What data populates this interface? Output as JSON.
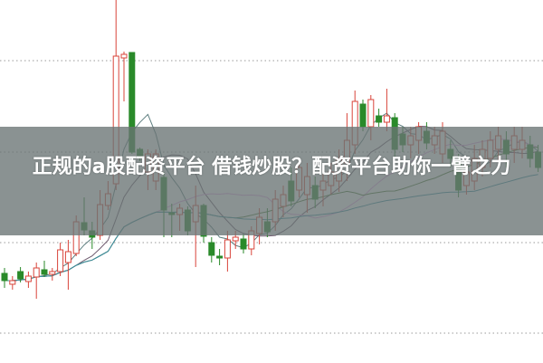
{
  "headline": "正规的a股配资平台 借钱炒股？配资平台助你一臂之力",
  "chart_data": {
    "type": "candlestick",
    "grid": "horizontal dotted",
    "ylim": [
      0,
      401
    ],
    "up_color": "#d9443a",
    "down_color": "#2a8a2a",
    "ma_lines": [
      {
        "period": 5,
        "color": "#5f7f80"
      },
      {
        "period": 10,
        "color": "#6e5a6e"
      },
      {
        "period": 20,
        "color": "#e5a3e5"
      },
      {
        "period": 30,
        "color": "#4f7d3a"
      },
      {
        "period": 60,
        "color": "#3a8fa0"
      }
    ],
    "ohlc": [
      [
        99,
        105,
        83,
        91
      ],
      [
        87,
        96,
        81,
        91
      ],
      [
        101,
        106,
        89,
        93
      ],
      [
        90,
        101,
        83,
        96
      ],
      [
        95,
        111,
        71,
        105
      ],
      [
        103,
        113,
        95,
        98
      ],
      [
        98,
        105,
        91,
        101
      ],
      [
        101,
        133,
        96,
        125
      ],
      [
        111,
        136,
        81,
        123
      ],
      [
        121,
        163,
        118,
        156
      ],
      [
        155,
        183,
        141,
        147
      ],
      [
        146,
        156,
        126,
        139
      ],
      [
        141,
        191,
        136,
        175
      ],
      [
        174,
        201,
        169,
        187
      ],
      [
        198,
        401,
        191,
        339
      ],
      [
        337,
        344,
        289,
        341
      ],
      [
        343,
        343,
        231,
        233
      ],
      [
        236,
        238,
        223,
        229
      ],
      [
        211,
        236,
        191,
        231
      ],
      [
        201,
        236,
        191,
        231
      ],
      [
        205,
        211,
        139,
        169
      ],
      [
        166,
        176,
        139,
        164
      ],
      [
        164,
        176,
        146,
        171
      ],
      [
        169,
        173,
        141,
        146
      ],
      [
        156,
        196,
        106,
        174
      ],
      [
        174,
        176,
        133,
        140
      ],
      [
        133,
        139,
        111,
        119
      ],
      [
        118,
        126,
        108,
        116
      ],
      [
        116,
        146,
        101,
        136
      ],
      [
        135,
        146,
        126,
        139
      ],
      [
        137,
        143,
        121,
        126
      ],
      [
        126,
        151,
        119,
        146
      ],
      [
        143,
        171,
        131,
        161
      ],
      [
        156,
        171,
        139,
        145
      ],
      [
        156,
        191,
        146,
        181
      ],
      [
        173,
        196,
        161,
        186
      ],
      [
        201,
        216,
        173,
        179
      ],
      [
        191,
        226,
        183,
        216
      ],
      [
        186,
        221,
        166,
        206
      ],
      [
        196,
        206,
        171,
        181
      ],
      [
        191,
        216,
        173,
        201
      ],
      [
        196,
        221,
        186,
        211
      ],
      [
        201,
        236,
        189,
        226
      ],
      [
        221,
        276,
        201,
        246
      ],
      [
        241,
        301,
        231,
        289
      ],
      [
        286,
        291,
        256,
        261
      ],
      [
        261,
        296,
        246,
        291
      ],
      [
        273,
        281,
        261,
        266
      ],
      [
        266,
        303,
        256,
        273
      ],
      [
        271,
        276,
        226,
        236
      ],
      [
        253,
        261,
        233,
        241
      ],
      [
        241,
        261,
        226,
        251
      ],
      [
        246,
        266,
        231,
        261
      ],
      [
        256,
        266,
        236,
        243
      ],
      [
        241,
        261,
        231,
        251
      ],
      [
        231,
        266,
        221,
        256
      ],
      [
        236,
        246,
        216,
        226
      ],
      [
        221,
        231,
        183,
        191
      ],
      [
        196,
        221,
        186,
        211
      ],
      [
        201,
        241,
        191,
        226
      ],
      [
        216,
        246,
        206,
        236
      ],
      [
        226,
        256,
        216,
        246
      ],
      [
        236,
        261,
        223,
        251
      ],
      [
        246,
        256,
        216,
        231
      ],
      [
        236,
        261,
        221,
        251
      ],
      [
        236,
        261,
        226,
        246
      ],
      [
        241,
        251,
        216,
        226
      ],
      [
        233,
        241,
        211,
        216
      ]
    ]
  }
}
